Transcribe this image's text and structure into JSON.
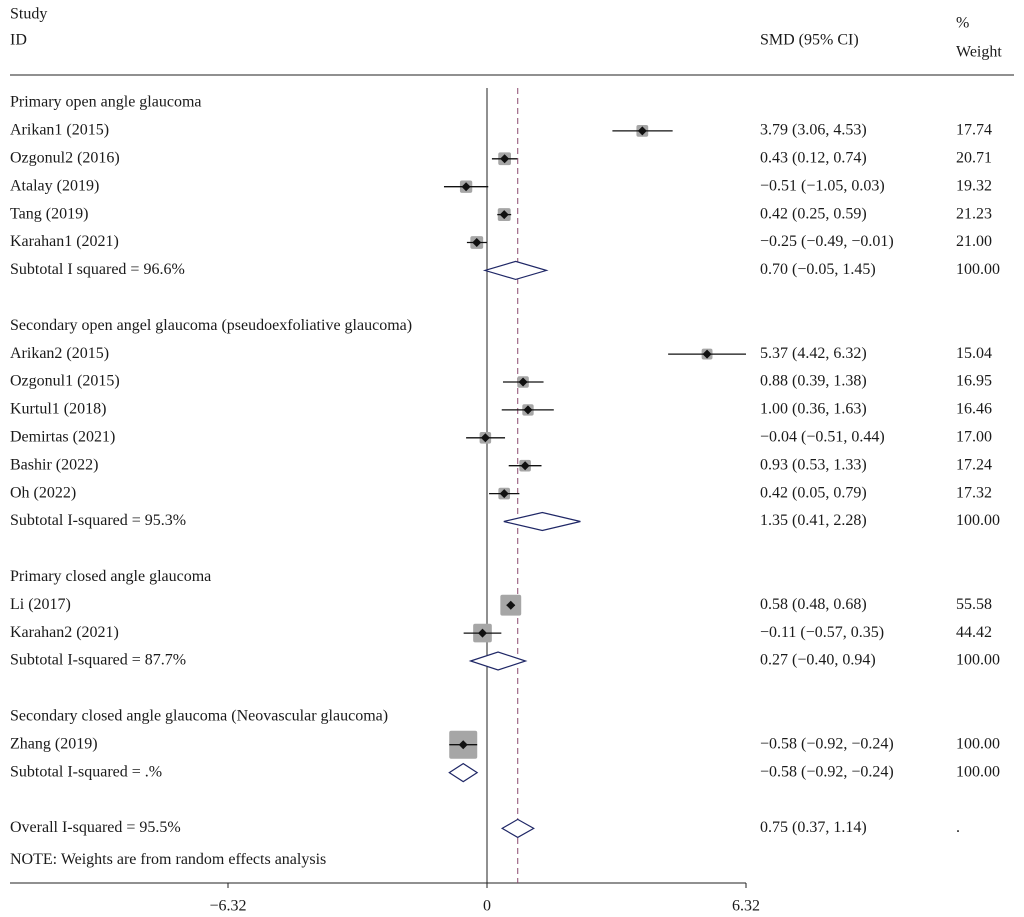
{
  "chart_data": {
    "type": "forest",
    "header": {
      "study": "Study",
      "id": "ID",
      "effect": "SMD (95% CI)",
      "pct": "%",
      "weight": "Weight"
    },
    "xlim": [
      -6.32,
      6.32
    ],
    "xticks": [
      {
        "value": -6.32,
        "label": "−6.32"
      },
      0,
      6.32
    ],
    "note": "NOTE: Weights are from random effects analysis",
    "rows": [
      {
        "kind": "heading",
        "label": "Primary open angle glaucoma"
      },
      {
        "kind": "study",
        "label": "Arikan1 (2015)",
        "est": 3.79,
        "lo": 3.06,
        "hi": 4.53,
        "ci_label": "3.79 (3.06, 4.53)",
        "weight": 17.74
      },
      {
        "kind": "study",
        "label": "Ozgonul2 (2016)",
        "est": 0.43,
        "lo": 0.12,
        "hi": 0.74,
        "ci_label": "0.43 (0.12, 0.74)",
        "weight": 20.71
      },
      {
        "kind": "study",
        "label": "Atalay (2019)",
        "est": -0.51,
        "lo": -1.05,
        "hi": 0.03,
        "ci_label": "−0.51 (−1.05, 0.03)",
        "weight": 19.32
      },
      {
        "kind": "study",
        "label": "Tang (2019)",
        "est": 0.42,
        "lo": 0.25,
        "hi": 0.59,
        "ci_label": "0.42 (0.25, 0.59)",
        "weight": 21.23
      },
      {
        "kind": "study",
        "label": "Karahan1 (2021)",
        "est": -0.25,
        "lo": -0.49,
        "hi": -0.01,
        "ci_label": "−0.25 (−0.49, −0.01)",
        "weight": 21,
        "weight_label": "21.00"
      },
      {
        "kind": "subtotal",
        "label": "Subtotal I squared = 96.6%",
        "est": 0.7,
        "lo": -0.05,
        "hi": 1.45,
        "ci_label": "0.70 (−0.05, 1.45)",
        "weight_label": "100.00"
      },
      {
        "kind": "heading",
        "label": "Secondary open angel glaucoma (pseudoexfoliative glaucoma)"
      },
      {
        "kind": "study",
        "label": "Arikan2 (2015)",
        "est": 5.37,
        "lo": 4.42,
        "hi": 6.32,
        "ci_label": "5.37 (4.42, 6.32)",
        "weight": 15.04
      },
      {
        "kind": "study",
        "label": "Ozgonul1 (2015)",
        "est": 0.88,
        "lo": 0.39,
        "hi": 1.38,
        "ci_label": "0.88 (0.39, 1.38)",
        "weight": 16.95
      },
      {
        "kind": "study",
        "label": "Kurtul1 (2018)",
        "est": 1.0,
        "lo": 0.36,
        "hi": 1.63,
        "ci_label": "1.00 (0.36, 1.63)",
        "weight": 16.46
      },
      {
        "kind": "study",
        "label": "Demirtas (2021)",
        "est": -0.04,
        "lo": -0.51,
        "hi": 0.44,
        "ci_label": "−0.04 (−0.51, 0.44)",
        "weight": 17,
        "weight_label": "17.00"
      },
      {
        "kind": "study",
        "label": "Bashir (2022)",
        "est": 0.93,
        "lo": 0.53,
        "hi": 1.33,
        "ci_label": "0.93 (0.53, 1.33)",
        "weight": 17.24
      },
      {
        "kind": "study",
        "label": "Oh (2022)",
        "est": 0.42,
        "lo": 0.05,
        "hi": 0.79,
        "ci_label": "0.42 (0.05, 0.79)",
        "weight": 17.32
      },
      {
        "kind": "subtotal",
        "label": "Subtotal I-squared = 95.3%",
        "est": 1.35,
        "lo": 0.41,
        "hi": 2.28,
        "ci_label": "1.35 (0.41, 2.28)",
        "weight_label": "100.00"
      },
      {
        "kind": "heading",
        "label": "Primary closed angle glaucoma"
      },
      {
        "kind": "study",
        "label": "Li (2017)",
        "est": 0.58,
        "lo": 0.48,
        "hi": 0.68,
        "ci_label": "0.58 (0.48, 0.68)",
        "weight": 55.58
      },
      {
        "kind": "study",
        "label": "Karahan2 (2021)",
        "est": -0.11,
        "lo": -0.57,
        "hi": 0.35,
        "ci_label": "−0.11 (−0.57, 0.35)",
        "weight": 44.42
      },
      {
        "kind": "subtotal",
        "label": "Subtotal I-squared = 87.7%",
        "est": 0.27,
        "lo": -0.4,
        "hi": 0.94,
        "ci_label": "0.27 (−0.40, 0.94)",
        "weight_label": "100.00"
      },
      {
        "kind": "heading",
        "label": "Secondary closed angle glaucoma (Neovascular glaucoma)"
      },
      {
        "kind": "study",
        "label": "Zhang (2019)",
        "est": -0.58,
        "lo": -0.92,
        "hi": -0.24,
        "ci_label": "−0.58 (−0.92, −0.24)",
        "weight": 100,
        "weight_label": "100.00"
      },
      {
        "kind": "subtotal",
        "label": "Subtotal I-squared = .%",
        "est": -0.58,
        "lo": -0.92,
        "hi": -0.24,
        "ci_label": "−0.58 (−0.92, −0.24)",
        "weight_label": "100.00"
      },
      {
        "kind": "overall",
        "label": "Overall I-squared = 95.5%",
        "est": 0.75,
        "lo": 0.37,
        "hi": 1.14,
        "ci_label": "0.75 (0.37, 1.14)",
        "weight_label": "."
      }
    ]
  }
}
